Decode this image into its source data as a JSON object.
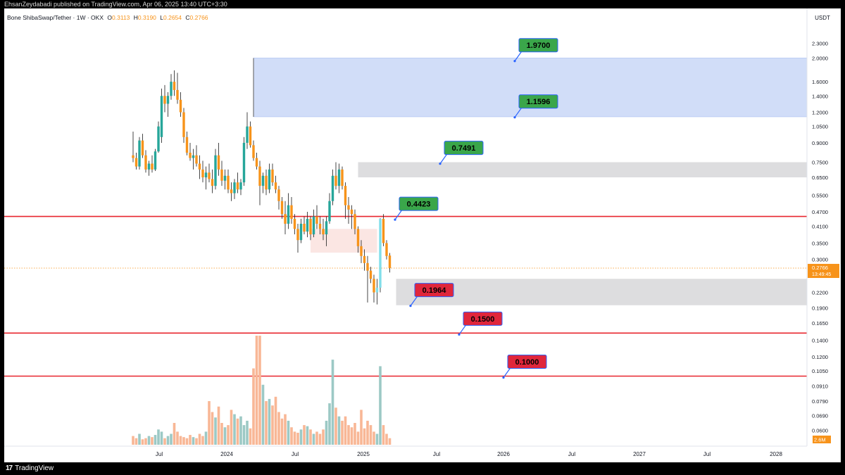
{
  "header": {
    "publisher_text": "EhsanZeydabadi published on TradingView.com, Apr 06, 2025 13:40 UTC+3:30"
  },
  "legend": {
    "symbol": "Bone ShibaSwap/Tether · 1W · OKX",
    "open_label": "O",
    "open": "0.3113",
    "high_label": "H",
    "high": "0.3190",
    "low_label": "L",
    "low": "0.2654",
    "close_label": "C",
    "close": "0.2766"
  },
  "footer": {
    "brand": "TradingView",
    "brand_mark": "17"
  },
  "colors": {
    "bull": "#26a69a",
    "bull_light": "#80deea",
    "bear": "#f7931a",
    "bull_vol": "#9cc9c5",
    "bear_vol": "#f8b796",
    "resistance_line": "#e8262e",
    "zone_blue": "#c9d7f7",
    "zone_grey": "#d9d9dc",
    "label_green": "#3aa64a",
    "label_red": "#e0263b",
    "price_tag": "#f7931a"
  },
  "chart_data": {
    "type": "candlestick",
    "currency": "USDT",
    "y_scale": "log",
    "ylim": [
      0.0575,
      2.65
    ],
    "y_ticks": [
      "2.3000",
      "2.0000",
      "1.6000",
      "1.4000",
      "1.2000",
      "1.0500",
      "0.9000",
      "0.7500",
      "0.6500",
      "0.5500",
      "0.4700",
      "0.4100",
      "0.3500",
      "0.3000",
      "0.2200",
      "0.1900",
      "0.1650",
      "0.1400",
      "0.1200",
      "0.1050",
      "0.0910",
      "0.0790",
      "0.0690",
      "0.0600"
    ],
    "x_ticks": [
      "Jul",
      "2024",
      "Jul",
      "2025",
      "Jul",
      "2026",
      "Jul",
      "2027",
      "Jul",
      "2028"
    ],
    "last_price": "0.2766",
    "countdown": "13:49:45",
    "volume_last": "2.6M",
    "zones": [
      {
        "name": "supply-zone-high",
        "low": 1.15,
        "high": 2.0,
        "start": "2024-02",
        "color": "blue"
      },
      {
        "name": "supply-zone-mid",
        "low": 0.65,
        "high": 0.75,
        "start": "2024-12",
        "color": "grey"
      },
      {
        "name": "demand-zone",
        "low": 0.195,
        "high": 0.25,
        "start": "2025-03",
        "color": "grey"
      },
      {
        "name": "previous-demand",
        "low": 0.32,
        "high": 0.4,
        "start": "2024-08",
        "color": "pink"
      }
    ],
    "levels": [
      {
        "price": 0.45,
        "style": "red-line"
      },
      {
        "price": 0.15,
        "style": "red-line"
      },
      {
        "price": 0.1,
        "style": "red-line"
      }
    ],
    "labels": [
      {
        "text": "1.9700",
        "color": "green",
        "value": 1.97
      },
      {
        "text": "1.1596",
        "color": "green",
        "value": 1.1596
      },
      {
        "text": "0.7491",
        "color": "green",
        "value": 0.7491
      },
      {
        "text": "0.4423",
        "color": "green",
        "value": 0.4423
      },
      {
        "text": "0.1964",
        "color": "red",
        "value": 0.1964
      },
      {
        "text": "0.1500",
        "color": "red",
        "value": 0.15
      },
      {
        "text": "0.1000",
        "color": "red",
        "value": 0.1
      }
    ],
    "candles": [
      [
        0.8,
        1.0,
        0.75,
        0.78
      ],
      [
        0.78,
        0.82,
        0.7,
        0.72
      ],
      [
        0.72,
        0.95,
        0.7,
        0.92
      ],
      [
        0.92,
        0.98,
        0.78,
        0.8
      ],
      [
        0.8,
        0.84,
        0.68,
        0.7
      ],
      [
        0.7,
        0.76,
        0.66,
        0.74
      ],
      [
        0.74,
        0.8,
        0.68,
        0.7
      ],
      [
        0.7,
        0.85,
        0.69,
        0.83
      ],
      [
        0.83,
        1.1,
        0.82,
        1.05
      ],
      [
        0.95,
        1.5,
        0.9,
        1.4
      ],
      [
        1.4,
        1.55,
        1.2,
        1.3
      ],
      [
        1.3,
        1.45,
        1.15,
        1.4
      ],
      [
        1.4,
        1.72,
        1.35,
        1.6
      ],
      [
        1.6,
        1.78,
        1.4,
        1.48
      ],
      [
        1.48,
        1.74,
        1.3,
        1.35
      ],
      [
        1.35,
        1.45,
        1.15,
        1.2
      ],
      [
        1.2,
        1.25,
        0.9,
        0.95
      ],
      [
        0.95,
        1.0,
        0.8,
        0.82
      ],
      [
        0.82,
        0.9,
        0.76,
        0.78
      ],
      [
        0.78,
        0.85,
        0.7,
        0.8
      ],
      [
        0.8,
        0.88,
        0.72,
        0.74
      ],
      [
        0.74,
        0.8,
        0.64,
        0.7
      ],
      [
        0.7,
        0.76,
        0.62,
        0.65
      ],
      [
        0.65,
        0.72,
        0.58,
        0.68
      ],
      [
        0.68,
        0.74,
        0.62,
        0.64
      ],
      [
        0.64,
        0.7,
        0.56,
        0.6
      ],
      [
        0.6,
        0.85,
        0.58,
        0.8
      ],
      [
        0.8,
        0.9,
        0.66,
        0.7
      ],
      [
        0.7,
        0.76,
        0.6,
        0.63
      ],
      [
        0.63,
        0.7,
        0.58,
        0.66
      ],
      [
        0.66,
        0.7,
        0.56,
        0.58
      ],
      [
        0.58,
        0.62,
        0.52,
        0.56
      ],
      [
        0.56,
        0.64,
        0.53,
        0.62
      ],
      [
        0.62,
        0.68,
        0.56,
        0.58
      ],
      [
        0.58,
        0.64,
        0.55,
        0.62
      ],
      [
        0.62,
        0.95,
        0.6,
        0.9
      ],
      [
        0.9,
        1.2,
        0.85,
        1.05
      ],
      [
        1.05,
        1.1,
        0.86,
        0.88
      ],
      [
        0.88,
        0.92,
        0.76,
        0.78
      ],
      [
        0.78,
        0.82,
        0.7,
        0.72
      ],
      [
        0.72,
        0.76,
        0.5,
        0.6
      ],
      [
        0.6,
        0.68,
        0.56,
        0.66
      ],
      [
        0.66,
        0.7,
        0.55,
        0.58
      ],
      [
        0.58,
        0.74,
        0.56,
        0.7
      ],
      [
        0.7,
        0.74,
        0.6,
        0.62
      ],
      [
        0.62,
        0.66,
        0.56,
        0.58
      ],
      [
        0.58,
        0.6,
        0.48,
        0.52
      ],
      [
        0.52,
        0.54,
        0.44,
        0.46
      ],
      [
        0.46,
        0.52,
        0.38,
        0.42
      ],
      [
        0.42,
        0.56,
        0.4,
        0.5
      ],
      [
        0.5,
        0.54,
        0.42,
        0.44
      ],
      [
        0.44,
        0.46,
        0.38,
        0.4
      ],
      [
        0.4,
        0.42,
        0.32,
        0.36
      ],
      [
        0.36,
        0.44,
        0.35,
        0.42
      ],
      [
        0.42,
        0.45,
        0.38,
        0.39
      ],
      [
        0.39,
        0.47,
        0.37,
        0.44
      ],
      [
        0.44,
        0.45,
        0.36,
        0.38
      ],
      [
        0.38,
        0.48,
        0.37,
        0.45
      ],
      [
        0.45,
        0.5,
        0.4,
        0.42
      ],
      [
        0.42,
        0.45,
        0.38,
        0.4
      ],
      [
        0.4,
        0.44,
        0.36,
        0.38
      ],
      [
        0.38,
        0.45,
        0.34,
        0.43
      ],
      [
        0.43,
        0.56,
        0.42,
        0.52
      ],
      [
        0.52,
        0.7,
        0.5,
        0.66
      ],
      [
        0.66,
        0.75,
        0.58,
        0.6
      ],
      [
        0.6,
        0.74,
        0.56,
        0.7
      ],
      [
        0.7,
        0.72,
        0.58,
        0.6
      ],
      [
        0.6,
        0.62,
        0.44,
        0.5
      ],
      [
        0.5,
        0.54,
        0.42,
        0.48
      ],
      [
        0.48,
        0.5,
        0.4,
        0.46
      ],
      [
        0.46,
        0.48,
        0.38,
        0.4
      ],
      [
        0.4,
        0.41,
        0.32,
        0.34
      ],
      [
        0.34,
        0.36,
        0.29,
        0.31
      ],
      [
        0.31,
        0.33,
        0.27,
        0.29
      ],
      [
        0.29,
        0.31,
        0.2,
        0.27
      ],
      [
        0.27,
        0.28,
        0.24,
        0.25
      ],
      [
        0.25,
        0.26,
        0.2,
        0.22
      ],
      [
        0.22,
        0.25,
        0.1964,
        0.23
      ],
      [
        0.23,
        0.4423,
        0.22,
        0.44
      ],
      [
        0.44,
        0.46,
        0.34,
        0.35
      ],
      [
        0.35,
        0.36,
        0.3,
        0.31
      ],
      [
        0.3113,
        0.319,
        0.2654,
        0.2766
      ]
    ],
    "volume_rel": [
      0.08,
      0.06,
      0.1,
      0.05,
      0.06,
      0.08,
      0.07,
      0.09,
      0.14,
      0.12,
      0.06,
      0.08,
      0.1,
      0.2,
      0.12,
      0.08,
      0.07,
      0.06,
      0.09,
      0.07,
      0.06,
      0.1,
      0.08,
      0.12,
      0.4,
      0.3,
      0.25,
      0.35,
      0.2,
      0.16,
      0.18,
      0.32,
      0.28,
      0.24,
      0.26,
      0.18,
      0.22,
      0.15,
      0.7,
      1.0,
      1.0,
      0.55,
      0.4,
      0.42,
      0.36,
      0.44,
      0.3,
      0.24,
      0.28,
      0.22,
      0.16,
      0.12,
      0.11,
      0.14,
      0.18,
      0.17,
      0.14,
      0.1,
      0.12,
      0.1,
      0.14,
      0.22,
      0.38,
      0.78,
      0.34,
      0.26,
      0.22,
      0.26,
      0.18,
      0.16,
      0.2,
      0.12,
      0.32,
      0.15,
      0.22,
      0.18,
      0.12,
      0.1,
      0.72,
      0.18,
      0.1,
      0.06
    ]
  }
}
